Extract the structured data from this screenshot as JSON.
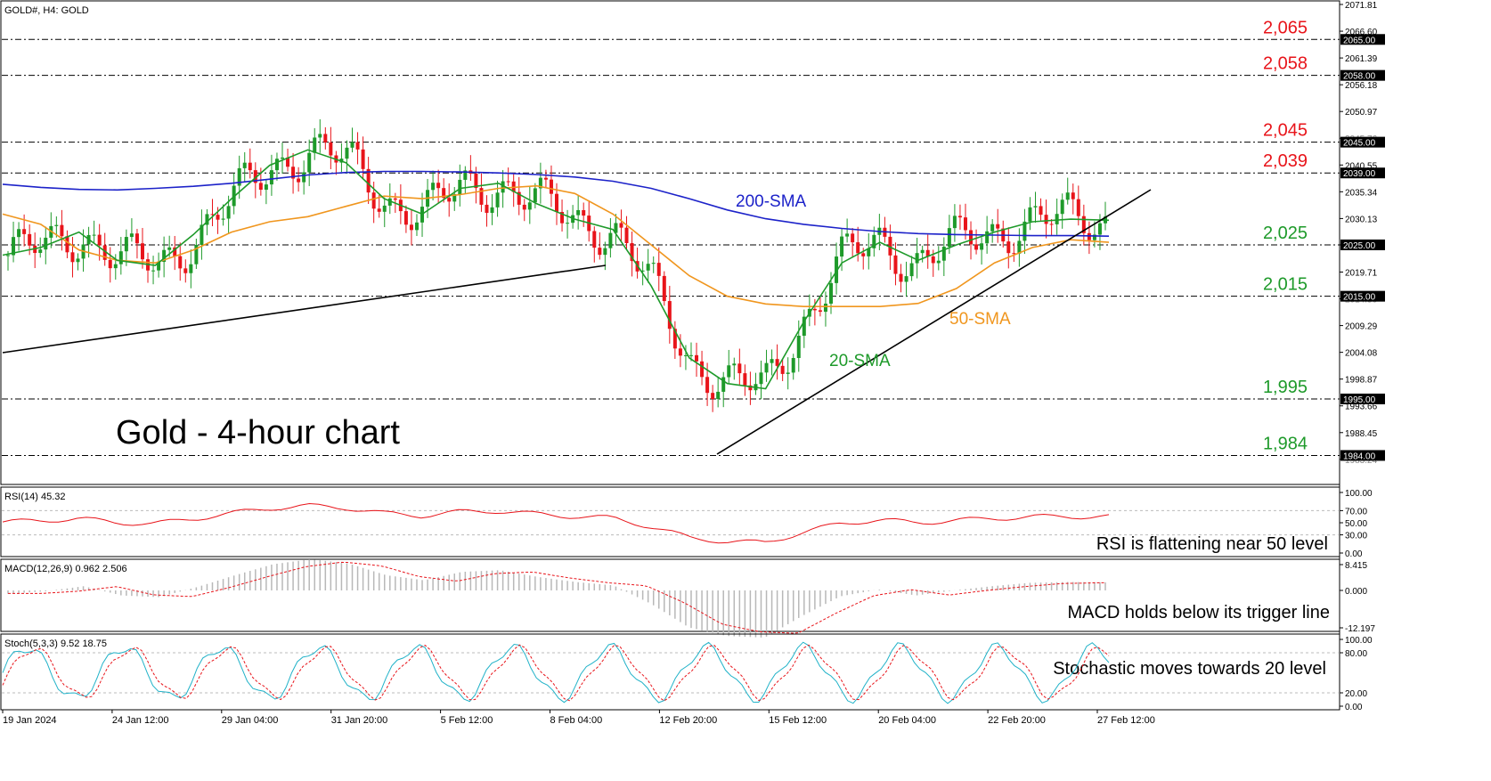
{
  "chart_data": {
    "type": "line",
    "symbol_header": "GOLD#, H4:  GOLD",
    "title": "Gold - 4-hour chart",
    "ylim": [
      1983.21,
      2071.81
    ],
    "price_axis_ticks": [
      "2071.81",
      "2066.60",
      "2061.39",
      "2056.18",
      "2050.97",
      "2045.76",
      "2040.55",
      "2035.34",
      "2030.13",
      "2025.00",
      "2019.71",
      "2014.50",
      "2009.29",
      "2004.08",
      "1998.87",
      "1993.66",
      "1988.45",
      "1983.24"
    ],
    "time_axis_labels": [
      "19 Jan 2024",
      "24 Jan 12:00",
      "29 Jan 04:00",
      "31 Jan 20:00",
      "5 Feb 12:00",
      "8 Feb 04:00",
      "12 Feb 20:00",
      "15 Feb 12:00",
      "20 Feb 04:00",
      "22 Feb 20:00",
      "27 Feb 12:00"
    ],
    "levels": [
      {
        "value": 2065,
        "label": "2,065",
        "tag": "2065.00",
        "color": "#e8141a"
      },
      {
        "value": 2058,
        "label": "2,058",
        "tag": "2058.00",
        "color": "#e8141a"
      },
      {
        "value": 2045,
        "label": "2,045",
        "tag": "2045.00",
        "color": "#e8141a"
      },
      {
        "value": 2039,
        "label": "2,039",
        "tag": "2039.00",
        "color": "#e8141a"
      },
      {
        "value": 2025,
        "label": "2,025",
        "tag": "2025.00",
        "color": "#1e9a2a"
      },
      {
        "value": 2015,
        "label": "2,015",
        "tag": "2015.00",
        "color": "#1e9a2a"
      },
      {
        "value": 1995,
        "label": "1,995",
        "tag": "1995.00",
        "color": "#1e9a2a"
      },
      {
        "value": 1984,
        "label": "1,984",
        "tag": "1984.00",
        "color": "#1e9a2a"
      }
    ],
    "series": [
      {
        "name": "200-SMA",
        "color": "#1c22c9",
        "values": [
          2036.8,
          2036.2,
          2035.8,
          2035.7,
          2036.0,
          2036.4,
          2037.0,
          2037.8,
          2038.6,
          2039.1,
          2039.3,
          2039.3,
          2039.2,
          2039.0,
          2038.7,
          2038.2,
          2037.4,
          2036.0,
          2034.0,
          2031.8,
          2030.1,
          2029.0,
          2028.2,
          2027.6,
          2027.2,
          2027.0,
          2026.9,
          2026.8,
          2026.8,
          2026.7
        ]
      },
      {
        "name": "50-SMA",
        "color": "#f0961e",
        "values": [
          2031.0,
          2029.0,
          2024.0,
          2022.0,
          2021.5,
          2024.0,
          2027.5,
          2029.5,
          2030.5,
          2032.5,
          2034.5,
          2034.0,
          2034.8,
          2036.0,
          2036.5,
          2035.0,
          2031.0,
          2025.0,
          2019.0,
          2015.0,
          2013.5,
          2013.0,
          2013.0,
          2013.0,
          2013.6,
          2016.5,
          2021.5,
          2024.5,
          2026.0,
          2025.5
        ]
      },
      {
        "name": "20-SMA",
        "color": "#1e9a2a",
        "values": [
          2023.0,
          2024.5,
          2027.5,
          2022.0,
          2021.0,
          2027.0,
          2034.0,
          2040.5,
          2043.5,
          2041.0,
          2034.0,
          2031.0,
          2036.0,
          2037.0,
          2033.0,
          2030.0,
          2028.0,
          2017.0,
          2003.0,
          1998.0,
          1997.0,
          2010.0,
          2021.5,
          2025.5,
          2022.0,
          2025.0,
          2027.5,
          2029.5,
          2030.0,
          2029.8
        ]
      }
    ],
    "annotations": {
      "sma200": "200-SMA",
      "sma50": "50-SMA",
      "sma20": "20-SMA"
    },
    "rsi": {
      "header": "RSI(14) 45.32",
      "note": "RSI is flattening near 50 level",
      "ticks": [
        "100.00",
        "70.00",
        "50.00",
        "30.00",
        "0.00"
      ],
      "ylim": [
        0,
        100
      ],
      "color": "#e8141a"
    },
    "macd": {
      "header": "MACD(12,26,9) 0.962 2.506",
      "note": "MACD holds below its trigger line",
      "ticks": [
        "8.415",
        "0.000",
        "-12.197"
      ],
      "ylim": [
        -12.197,
        8.415
      ],
      "color": "#e8141a"
    },
    "stoch": {
      "header": "Stoch(5,3,3) 9.52 18.75",
      "note": "Stochastic moves towards 20 level",
      "ticks": [
        "100.00",
        "80.00",
        "20.00",
        "0.00"
      ],
      "ylim": [
        0,
        100
      ],
      "main_color": "#20b2c8",
      "signal_color": "#e8141a"
    },
    "colors": {
      "bull": "#1e9a2a",
      "bear": "#e8141a",
      "trendline": "#000000"
    }
  }
}
